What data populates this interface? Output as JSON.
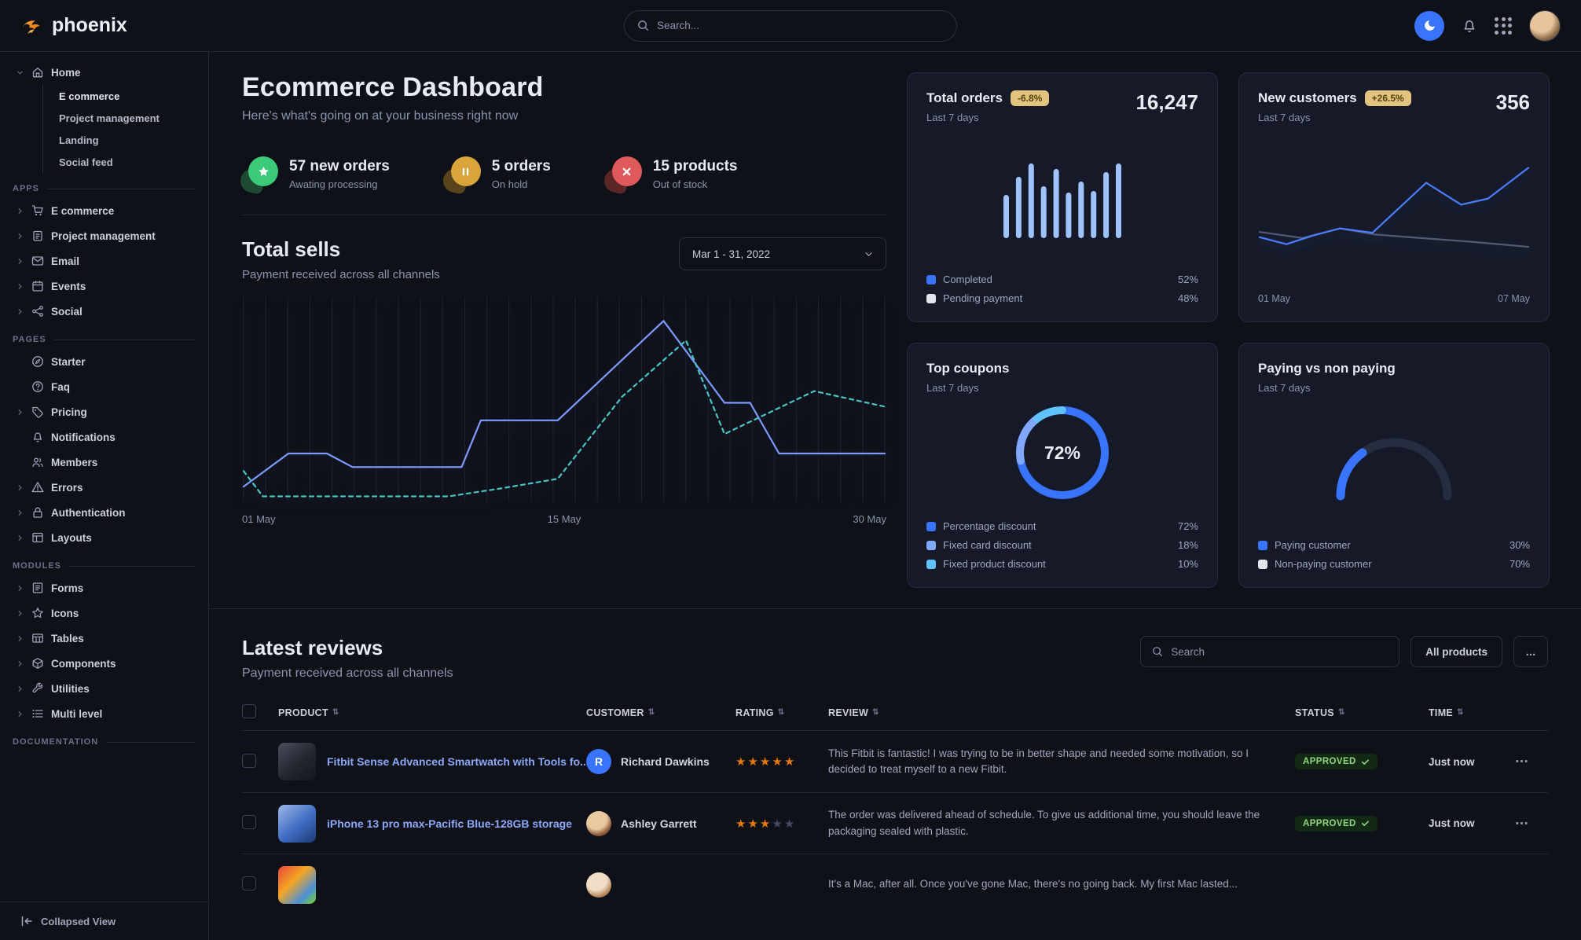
{
  "navbar": {
    "brand": "phoenix",
    "search_placeholder": "Search..."
  },
  "sidebar": {
    "footer_label": "Collapsed View",
    "sections": [
      {
        "label": "",
        "items": [
          {
            "label": "Home",
            "icon": "home",
            "caret": "down",
            "children": [
              {
                "label": "E commerce",
                "active": true
              },
              {
                "label": "Project management"
              },
              {
                "label": "Landing"
              },
              {
                "label": "Social feed"
              }
            ]
          }
        ]
      },
      {
        "label": "APPS",
        "items": [
          {
            "label": "E commerce",
            "icon": "cart",
            "caret": "right"
          },
          {
            "label": "Project management",
            "icon": "clipboard",
            "caret": "right"
          },
          {
            "label": "Email",
            "icon": "mail",
            "caret": "right"
          },
          {
            "label": "Events",
            "icon": "calendar",
            "caret": "right"
          },
          {
            "label": "Social",
            "icon": "share",
            "caret": "right"
          }
        ]
      },
      {
        "label": "PAGES",
        "items": [
          {
            "label": "Starter",
            "icon": "compass"
          },
          {
            "label": "Faq",
            "icon": "help"
          },
          {
            "label": "Pricing",
            "icon": "tag",
            "caret": "right"
          },
          {
            "label": "Notifications",
            "icon": "bell"
          },
          {
            "label": "Members",
            "icon": "users"
          },
          {
            "label": "Errors",
            "icon": "alert",
            "caret": "right"
          },
          {
            "label": "Authentication",
            "icon": "lock",
            "caret": "right"
          },
          {
            "label": "Layouts",
            "icon": "layout",
            "caret": "right"
          }
        ]
      },
      {
        "label": "MODULES",
        "items": [
          {
            "label": "Forms",
            "icon": "form",
            "caret": "right"
          },
          {
            "label": "Icons",
            "icon": "star",
            "caret": "right"
          },
          {
            "label": "Tables",
            "icon": "table",
            "caret": "right"
          },
          {
            "label": "Components",
            "icon": "box",
            "caret": "right"
          },
          {
            "label": "Utilities",
            "icon": "tool",
            "caret": "right"
          },
          {
            "label": "Multi level",
            "icon": "list",
            "caret": "right"
          }
        ]
      },
      {
        "label": "DOCUMENTATION",
        "items": []
      }
    ]
  },
  "header": {
    "title": "Ecommerce Dashboard",
    "subtitle": "Here's what's going on at your business right now"
  },
  "stats": [
    {
      "title": "57 new orders",
      "subtitle": "Awating processing",
      "glyph": "star",
      "color": "#3bc97a",
      "blob": "#1e4a34"
    },
    {
      "title": "5 orders",
      "subtitle": "On hold",
      "glyph": "pause",
      "color": "#d9a53a",
      "blob": "#59431c"
    },
    {
      "title": "15 products",
      "subtitle": "Out of stock",
      "glyph": "x",
      "color": "#df5a5a",
      "blob": "#5a2626"
    }
  ],
  "total_sells": {
    "title": "Total sells",
    "subtitle": "Payment received across all channels",
    "date_range": "Mar 1 - 31, 2022"
  },
  "cards": {
    "total_orders": {
      "title": "Total orders",
      "badge": "-6.8%",
      "period": "Last 7 days",
      "value": "16,247",
      "legend": [
        {
          "label": "Completed",
          "value": 52,
          "color": "#3874ff"
        },
        {
          "label": "Pending payment",
          "value": 48,
          "color": "#e3e6ed"
        }
      ]
    },
    "new_customers": {
      "title": "New customers",
      "badge": "+26.5%",
      "period": "Last 7 days",
      "value": "356"
    },
    "top_coupons": {
      "title": "Top coupons",
      "period": "Last 7 days",
      "center_label": "72%"
    },
    "paying": {
      "title": "Paying vs non paying",
      "period": "Last 7 days"
    }
  },
  "chart_data": [
    {
      "id": "total_sells",
      "type": "line",
      "title": "Total sells",
      "x_ticks": [
        "01 May",
        "15 May",
        "30 May"
      ],
      "ylim": [
        0,
        100
      ],
      "grid": "vertical",
      "series": [
        {
          "name": "current period",
          "style": "solid",
          "color": "#7d9bff",
          "points": [
            [
              0,
              6
            ],
            [
              0.07,
              23
            ],
            [
              0.13,
              23
            ],
            [
              0.17,
              16
            ],
            [
              0.34,
              16
            ],
            [
              0.37,
              40
            ],
            [
              0.49,
              40
            ],
            [
              0.655,
              91
            ],
            [
              0.75,
              49
            ],
            [
              0.79,
              49
            ],
            [
              0.835,
              23
            ],
            [
              1,
              23
            ]
          ]
        },
        {
          "name": "previous period",
          "style": "dashed",
          "color": "#49c5c5",
          "points": [
            [
              0,
              14
            ],
            [
              0.03,
              1
            ],
            [
              0.32,
              1
            ],
            [
              0.4,
              5
            ],
            [
              0.49,
              10
            ],
            [
              0.59,
              52
            ],
            [
              0.69,
              81
            ],
            [
              0.75,
              33
            ],
            [
              0.89,
              55
            ],
            [
              1,
              47
            ]
          ]
        }
      ]
    },
    {
      "id": "total_orders_bars",
      "type": "bar",
      "color": "#9ec3ff",
      "ylim": [
        0,
        100
      ],
      "values": [
        55,
        78,
        95,
        66,
        88,
        58,
        72,
        60,
        84,
        95
      ]
    },
    {
      "id": "new_customers",
      "type": "line",
      "x_ticks": [
        "01 May",
        "07 May"
      ],
      "ylim": [
        0,
        100
      ],
      "series": [
        {
          "name": "previous",
          "style": "solid",
          "color": "#525b75",
          "points": [
            [
              0,
              24
            ],
            [
              0.16,
              17
            ],
            [
              0.3,
              28
            ],
            [
              0.43,
              21
            ],
            [
              0.6,
              17
            ],
            [
              0.78,
              13
            ],
            [
              1,
              7
            ]
          ]
        },
        {
          "name": "current",
          "style": "solid",
          "color": "#4d7dff",
          "points": [
            [
              0,
              18
            ],
            [
              0.1,
              10
            ],
            [
              0.2,
              20
            ],
            [
              0.3,
              28
            ],
            [
              0.42,
              23
            ],
            [
              0.62,
              80
            ],
            [
              0.75,
              55
            ],
            [
              0.85,
              62
            ],
            [
              1,
              97
            ]
          ]
        }
      ]
    },
    {
      "id": "top_coupons",
      "type": "donut",
      "center_label": "72%",
      "slices": [
        {
          "label": "Percentage discount",
          "value": 72,
          "color": "#3874ff"
        },
        {
          "label": "Fixed card discount",
          "value": 18,
          "color": "#80a8ff"
        },
        {
          "label": "Fixed product discount",
          "value": 10,
          "color": "#60c2ff"
        }
      ]
    },
    {
      "id": "paying_gauge",
      "type": "gauge",
      "slices": [
        {
          "label": "Paying customer",
          "value": 30,
          "color": "#3874ff"
        },
        {
          "label": "Non-paying customer",
          "value": 70,
          "color": "#e3e6ed"
        }
      ]
    }
  ],
  "reviews": {
    "title": "Latest reviews",
    "subtitle": "Payment received across all channels",
    "search_placeholder": "Search",
    "filter_button": "All products",
    "more_button": "...",
    "columns": [
      "PRODUCT",
      "CUSTOMER",
      "RATING",
      "REVIEW",
      "STATUS",
      "TIME"
    ],
    "rows": [
      {
        "product": "Fitbit Sense Advanced Smartwatch with Tools fo...",
        "customer": {
          "name": "Richard Dawkins",
          "initial": "R"
        },
        "rating": 5,
        "review": "This Fitbit is fantastic! I was trying to be in better shape and needed some motivation, so I decided to treat myself to a new Fitbit.",
        "status": "APPROVED",
        "time": "Just now"
      },
      {
        "product": "iPhone 13 pro max-Pacific Blue-128GB storage",
        "customer": {
          "name": "Ashley Garrett"
        },
        "rating": 3,
        "review": "The order was delivered ahead of schedule. To give us additional time, you should leave the packaging sealed with plastic.",
        "status": "APPROVED",
        "time": "Just now"
      },
      {
        "product": "",
        "customer": {
          "name": ""
        },
        "rating": null,
        "review": "It's a Mac, after all. Once you've gone Mac, there's no going back. My first Mac lasted...",
        "status": "",
        "time": ""
      }
    ]
  }
}
